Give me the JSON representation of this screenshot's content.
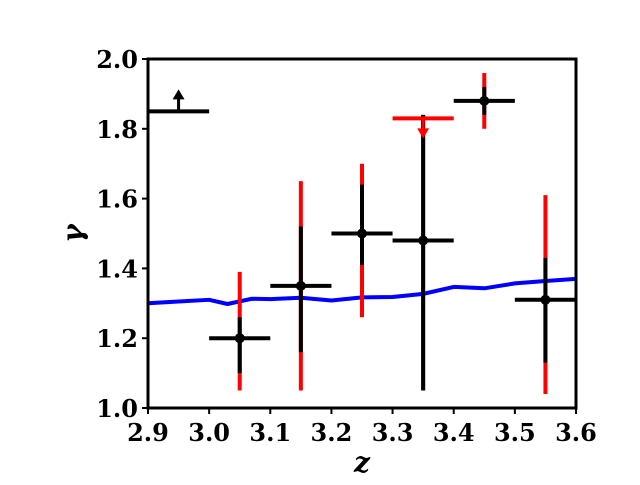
{
  "chart_data": {
    "type": "scatter",
    "xlabel": "z",
    "ylabel": "γ",
    "xlim": [
      2.9,
      3.6
    ],
    "ylim": [
      1.0,
      2.0
    ],
    "xticks": [
      "2.9",
      "3.0",
      "3.1",
      "3.2",
      "3.3",
      "3.4",
      "3.5",
      "3.6"
    ],
    "yticks": [
      "1.0",
      "1.2",
      "1.4",
      "1.6",
      "1.8",
      "2.0"
    ],
    "grid": false,
    "legend": "none",
    "colors": {
      "points": "#000000",
      "error_outer": "#ff0000",
      "error_inner": "#000000",
      "curve": "#0000ff"
    },
    "series": [
      {
        "kind": "error_points",
        "points": [
          {
            "x": 3.05,
            "y": 1.2,
            "xerr": 0.05,
            "y_inner": [
              1.1,
              1.26
            ],
            "y_outer": [
              1.05,
              1.39
            ]
          },
          {
            "x": 3.15,
            "y": 1.35,
            "xerr": 0.05,
            "y_inner": [
              1.16,
              1.52
            ],
            "y_outer": [
              1.05,
              1.65
            ]
          },
          {
            "x": 3.25,
            "y": 1.5,
            "xerr": 0.05,
            "y_inner": [
              1.41,
              1.64
            ],
            "y_outer": [
              1.26,
              1.7
            ]
          },
          {
            "x": 3.35,
            "y": 1.48,
            "xerr": 0.05,
            "y_inner": [
              1.05,
              1.84
            ],
            "y_outer": [
              1.05,
              1.84
            ]
          },
          {
            "x": 3.45,
            "y": 1.88,
            "xerr": 0.05,
            "y_inner": [
              1.84,
              1.92
            ],
            "y_outer": [
              1.8,
              1.96
            ]
          },
          {
            "x": 3.55,
            "y": 1.31,
            "xerr": 0.05,
            "y_inner": [
              1.13,
              1.43
            ],
            "y_outer": [
              1.04,
              1.61
            ]
          }
        ]
      },
      {
        "kind": "lower_limit",
        "x": 2.95,
        "y": 1.85,
        "xerr": 0.05,
        "color": "#000000"
      },
      {
        "kind": "upper_limit",
        "x": 3.35,
        "y": 1.83,
        "xerr": 0.05,
        "color": "#ff0000"
      },
      {
        "kind": "line",
        "color": "#0000ff",
        "x": [
          2.9,
          2.95,
          3.0,
          3.03,
          3.07,
          3.1,
          3.15,
          3.2,
          3.25,
          3.3,
          3.35,
          3.4,
          3.45,
          3.5,
          3.55,
          3.6
        ],
        "y": [
          1.3,
          1.305,
          1.31,
          1.298,
          1.313,
          1.312,
          1.316,
          1.308,
          1.317,
          1.318,
          1.327,
          1.347,
          1.343,
          1.357,
          1.364,
          1.37
        ]
      }
    ]
  }
}
